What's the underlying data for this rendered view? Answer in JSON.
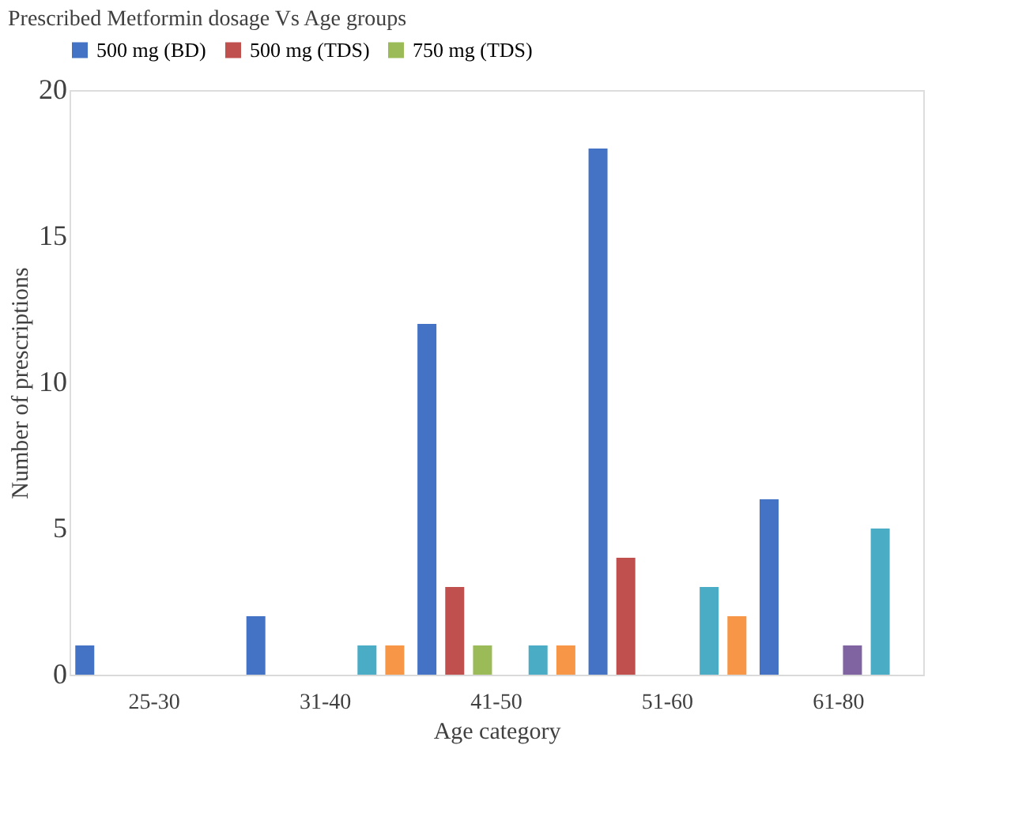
{
  "chart_data": {
    "type": "bar",
    "title": "Prescribed Metformin dosage Vs Age groups",
    "xlabel": "Age category",
    "ylabel": "Number of prescriptions",
    "categories": [
      "25-30",
      "31-40",
      "41-50",
      "51-60",
      "61-80"
    ],
    "series": [
      {
        "name": "500 mg (BD)",
        "color": "#4472c4",
        "values": [
          1,
          2,
          12,
          18,
          6
        ]
      },
      {
        "name": "500 mg (TDS)",
        "color": "#c0504d",
        "values": [
          0,
          0,
          3,
          4,
          0
        ]
      },
      {
        "name": "750 mg (TDS)",
        "color": "#9bbb59",
        "values": [
          0,
          0,
          1,
          0,
          0
        ]
      },
      {
        "color": "#8064a2",
        "values": [
          0,
          0,
          0,
          0,
          1
        ]
      },
      {
        "color": "#4bacc6",
        "values": [
          0,
          1,
          1,
          3,
          5
        ]
      },
      {
        "color": "#f79646",
        "values": [
          0,
          1,
          1,
          2,
          0
        ]
      }
    ],
    "ylim": [
      0,
      20
    ],
    "yticks": [
      0,
      5,
      10,
      15,
      20
    ],
    "grid": false,
    "legend": "top"
  }
}
